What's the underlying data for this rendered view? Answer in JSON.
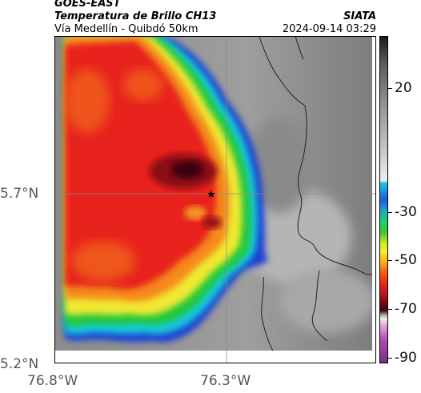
{
  "header": {
    "satellite": "GOES-EAST",
    "product": "Temperatura de Brillo CH13",
    "route": "Vía Medellín - Quibdó 50km",
    "agency": "SIATA",
    "timestamp": "2024-09-14 03:29"
  },
  "map": {
    "lat_labels": [
      "5.7°N",
      "5.2°N"
    ],
    "lon_labels": [
      "76.8°W",
      "76.3°W"
    ],
    "marker_icon": "star-icon"
  },
  "colorbar": {
    "labels": [
      "20",
      "-30",
      "-50",
      "-70",
      "-90"
    ]
  }
}
